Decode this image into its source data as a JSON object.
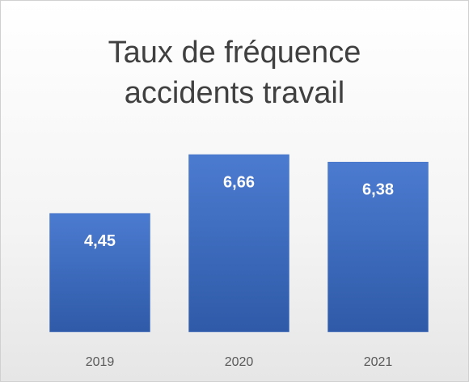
{
  "chart_data": {
    "type": "bar",
    "title": "Taux de fréquence accidents travail",
    "categories": [
      "2019",
      "2020",
      "2021"
    ],
    "values": [
      4.45,
      6.66,
      6.38
    ],
    "value_labels": [
      "4,45",
      "6,66",
      "6,38"
    ],
    "color": "#4472c4"
  }
}
